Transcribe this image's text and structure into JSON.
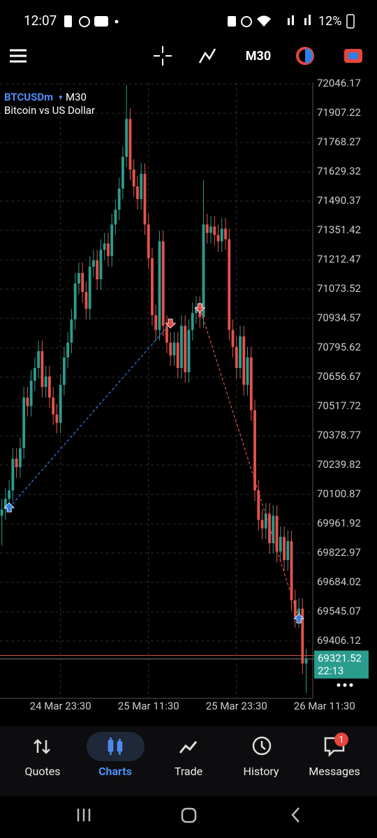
{
  "status_bar": {
    "time": "12:07",
    "battery": "12%"
  },
  "toolbar": {
    "timeframe": "M30"
  },
  "chart_data": {
    "type": "candlestick",
    "symbol": "BTCUSDm",
    "timeframe": "M30",
    "description": "Bitcoin vs US Dollar",
    "open": [
      70000,
      70030,
      70080,
      70120,
      70270,
      70230,
      70320,
      70560,
      70520,
      70640,
      70700,
      70780,
      70610,
      70660,
      70560,
      70480,
      70440,
      70620,
      70750,
      70820,
      70930,
      71100,
      71150,
      71060,
      70980,
      71180,
      71210,
      71120,
      71260,
      71290,
      71230,
      71380,
      71450,
      71550,
      71700,
      71880,
      71640,
      71560,
      71500,
      71620,
      71380,
      71220,
      70950,
      70880,
      71300,
      70900,
      70820,
      70760,
      70820,
      70700,
      70900,
      70680,
      70880,
      70960,
      70990,
      70940,
      71380,
      71340,
      71370,
      71330,
      71300,
      71360,
      71310,
      70880,
      70800,
      70700,
      70850,
      70620,
      70750,
      70500,
      70120,
      69980,
      69940,
      70010,
      69870,
      70000,
      69830,
      69900,
      69790,
      69880,
      69600,
      69520,
      69560,
      69300
    ],
    "high": [
      70080,
      70130,
      70170,
      70320,
      70320,
      70370,
      70610,
      70610,
      70690,
      70750,
      70830,
      70830,
      70710,
      70710,
      70610,
      70530,
      70670,
      70800,
      70870,
      70980,
      71150,
      71200,
      71200,
      71110,
      71230,
      71260,
      71260,
      71310,
      71340,
      71340,
      71430,
      71500,
      71600,
      71750,
      72040,
      71930,
      71690,
      71610,
      71670,
      71670,
      71430,
      71270,
      71000,
      71350,
      71350,
      70950,
      70870,
      70870,
      70870,
      70950,
      70950,
      70930,
      71010,
      71040,
      71040,
      71590,
      71430,
      71420,
      71420,
      71380,
      71410,
      71410,
      71360,
      70930,
      70850,
      70900,
      70900,
      70800,
      70800,
      70550,
      70170,
      70030,
      70060,
      70060,
      70050,
      70050,
      69950,
      69950,
      69930,
      69930,
      69650,
      69610,
      69610,
      69370
    ],
    "low": [
      69860,
      69980,
      70030,
      70070,
      70180,
      70180,
      70270,
      70470,
      70470,
      70590,
      70650,
      70560,
      70560,
      70510,
      70430,
      70390,
      70390,
      70570,
      70700,
      70770,
      70880,
      71050,
      71010,
      70930,
      70930,
      71130,
      71070,
      71070,
      71210,
      71180,
      71180,
      71330,
      71400,
      71500,
      71650,
      71590,
      71510,
      71450,
      71450,
      71330,
      71170,
      70900,
      70830,
      70830,
      70850,
      70770,
      70710,
      70710,
      70650,
      70650,
      70630,
      70630,
      70830,
      70910,
      70890,
      70890,
      71290,
      71290,
      71280,
      71250,
      71250,
      71260,
      70830,
      70750,
      70650,
      70650,
      70570,
      70570,
      70450,
      70070,
      69930,
      69890,
      69890,
      69820,
      69820,
      69780,
      69780,
      69740,
      69740,
      69550,
      69470,
      69470,
      69250,
      69160
    ],
    "close": [
      70030,
      70080,
      70120,
      70270,
      70230,
      70320,
      70560,
      70520,
      70640,
      70700,
      70780,
      70610,
      70660,
      70560,
      70480,
      70440,
      70620,
      70750,
      70820,
      70930,
      71100,
      71150,
      71060,
      70980,
      71180,
      71210,
      71120,
      71260,
      71290,
      71230,
      71380,
      71450,
      71550,
      71700,
      71880,
      71640,
      71560,
      71500,
      71620,
      71380,
      71220,
      70950,
      70880,
      71300,
      70900,
      70820,
      70760,
      70820,
      70700,
      70900,
      70680,
      70880,
      70960,
      70990,
      70940,
      71380,
      71340,
      71370,
      71330,
      71300,
      71360,
      71310,
      70880,
      70800,
      70700,
      70850,
      70620,
      70750,
      70500,
      70120,
      69980,
      69940,
      70010,
      69870,
      70000,
      69830,
      69900,
      69790,
      69880,
      69600,
      69520,
      69560,
      69300,
      69321.52
    ],
    "up_color": "#2a9d8f",
    "down_color": "#e5534b",
    "ylim": [
      69135,
      72053
    ],
    "yticks": [
      72046.17,
      71907.22,
      71768.27,
      71629.32,
      71490.37,
      71351.42,
      71212.47,
      71073.52,
      70934.57,
      70795.62,
      70656.67,
      70517.72,
      70378.77,
      70239.82,
      70100.87,
      69961.92,
      69822.97,
      69684.02,
      69545.07,
      69406.12
    ],
    "xlim": [
      -0.5,
      84.8
    ],
    "xticks": [
      {
        "value": 16,
        "label": "24 Mar 23:30"
      },
      {
        "value": 40,
        "label": "25 Mar 11:30"
      },
      {
        "value": 64,
        "label": "25 Mar 23:30"
      },
      {
        "value": 88,
        "label": "26 Mar 11:30"
      }
    ],
    "grid": true,
    "ask": 69338,
    "timer": "22:13",
    "buy_color": "#2f7fe6",
    "sell_color": "#e54b4b",
    "trades": [
      {
        "direction": "buy",
        "open_x": 2,
        "open_price": 70038,
        "close_x": 46,
        "close_price": 70912
      },
      {
        "direction": "sell",
        "open_x": 54,
        "open_price": 70985,
        "close_x": 81,
        "close_price": 69512
      }
    ]
  },
  "nav": {
    "items": [
      "Quotes",
      "Charts",
      "Trade",
      "History",
      "Messages"
    ],
    "active": 1,
    "badge": 1
  }
}
